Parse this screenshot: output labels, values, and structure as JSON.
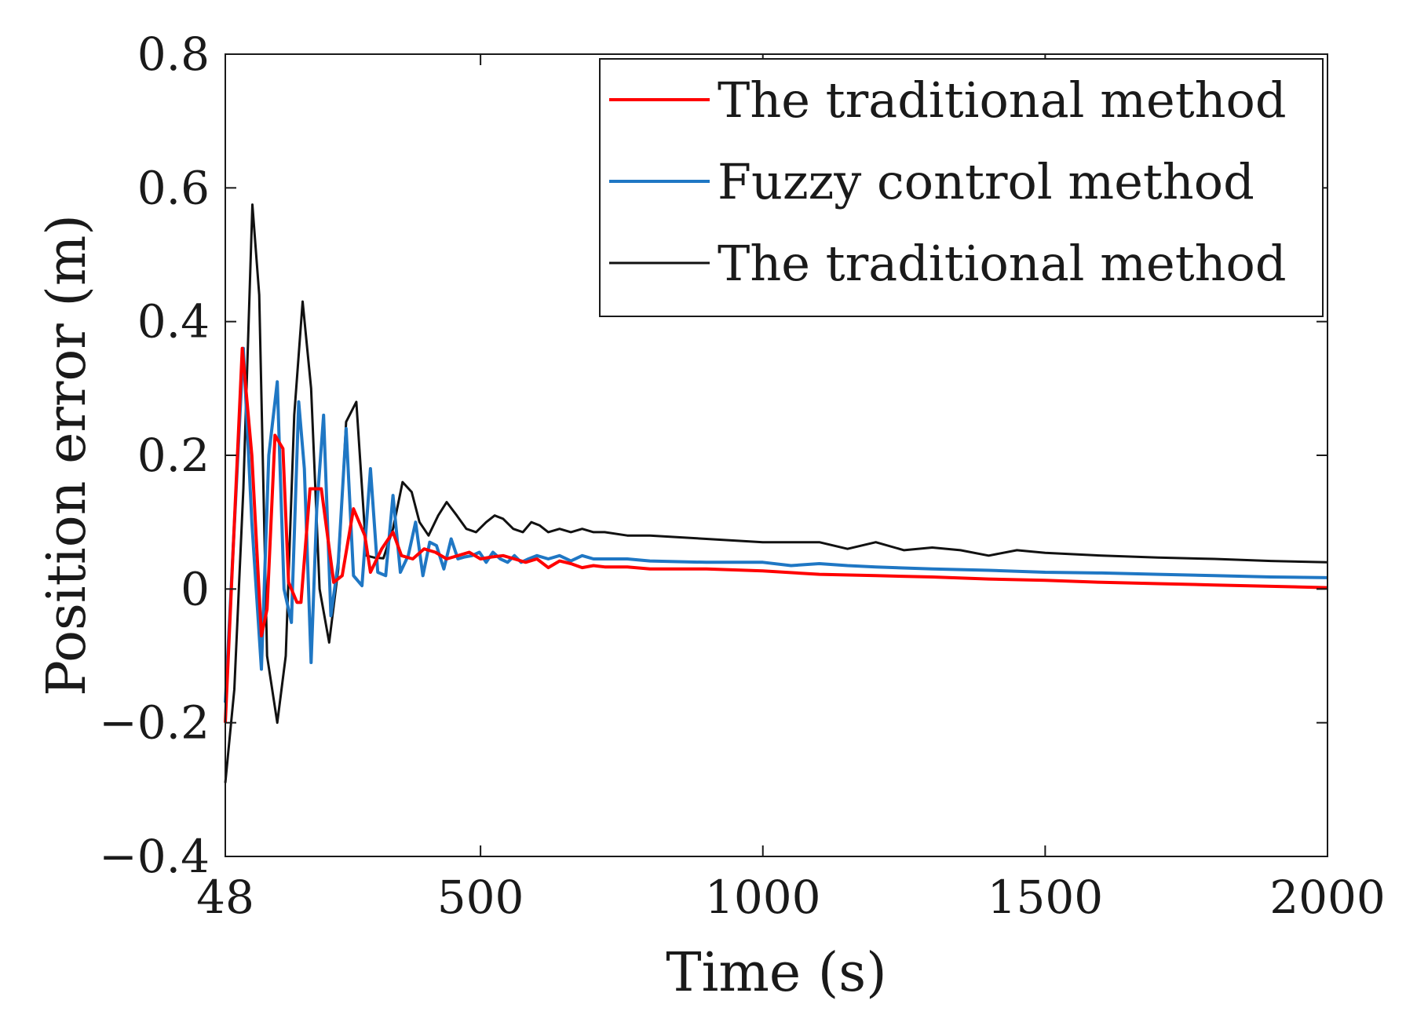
{
  "chart_data": {
    "type": "line",
    "xlabel": "Time (s)",
    "ylabel": "Position error (m)",
    "xlim": [
      48,
      2000
    ],
    "ylim": [
      -0.4,
      0.8
    ],
    "xticks": [
      48,
      500,
      1000,
      1500,
      2000
    ],
    "xtick_labels": [
      "48",
      "500",
      "1000",
      "1500",
      "2000"
    ],
    "yticks": [
      -0.4,
      -0.2,
      0,
      0.2,
      0.4,
      0.6,
      0.8
    ],
    "ytick_labels": [
      "−0.4",
      "−0.2",
      "0",
      "0.2",
      "0.4",
      "0.6",
      "0.8"
    ],
    "grid": false,
    "legend_position": "top-right",
    "series": [
      {
        "name": "The traditional method",
        "color": "#ff0000",
        "x": [
          48,
          78,
          95,
          112,
          122,
          136,
          150,
          160,
          175,
          182,
          198,
          218,
          240,
          255,
          275,
          295,
          305,
          325,
          345,
          360,
          380,
          400,
          420,
          440,
          460,
          480,
          500,
          520,
          540,
          560,
          580,
          600,
          620,
          640,
          660,
          680,
          700,
          720,
          760,
          800,
          900,
          1000,
          1100,
          1200,
          1300,
          1400,
          1500,
          1600,
          1700,
          1800,
          1900,
          2000
        ],
        "values": [
          -0.2,
          0.36,
          0.2,
          -0.07,
          -0.03,
          0.23,
          0.21,
          0.01,
          -0.02,
          -0.02,
          0.15,
          0.15,
          0.01,
          0.02,
          0.12,
          0.08,
          0.025,
          0.06,
          0.085,
          0.05,
          0.045,
          0.06,
          0.055,
          0.045,
          0.05,
          0.055,
          0.045,
          0.048,
          0.05,
          0.045,
          0.04,
          0.045,
          0.032,
          0.042,
          0.038,
          0.032,
          0.035,
          0.033,
          0.033,
          0.03,
          0.03,
          0.027,
          0.022,
          0.02,
          0.018,
          0.015,
          0.013,
          0.01,
          0.008,
          0.006,
          0.004,
          0.002
        ]
      },
      {
        "name": "Fuzzy control method",
        "color": "#1f77c4",
        "x": [
          48,
          80,
          95,
          112,
          125,
          140,
          152,
          165,
          178,
          188,
          200,
          210,
          222,
          235,
          248,
          262,
          275,
          290,
          305,
          318,
          332,
          345,
          358,
          372,
          385,
          398,
          410,
          422,
          435,
          448,
          460,
          472,
          485,
          498,
          510,
          522,
          535,
          548,
          560,
          572,
          585,
          600,
          620,
          640,
          660,
          680,
          700,
          720,
          760,
          800,
          900,
          1000,
          1050,
          1100,
          1150,
          1200,
          1300,
          1400,
          1500,
          1600,
          1700,
          1800,
          1900,
          2000
        ],
        "values": [
          -0.17,
          0.36,
          0.1,
          -0.12,
          0.2,
          0.31,
          0.0,
          -0.05,
          0.28,
          0.18,
          -0.11,
          0.12,
          0.26,
          -0.04,
          0.04,
          0.24,
          0.02,
          0.005,
          0.18,
          0.025,
          0.02,
          0.14,
          0.025,
          0.05,
          0.1,
          0.02,
          0.07,
          0.065,
          0.03,
          0.075,
          0.045,
          0.048,
          0.05,
          0.055,
          0.04,
          0.055,
          0.045,
          0.04,
          0.05,
          0.04,
          0.045,
          0.05,
          0.045,
          0.05,
          0.042,
          0.05,
          0.045,
          0.045,
          0.045,
          0.042,
          0.04,
          0.04,
          0.035,
          0.038,
          0.035,
          0.033,
          0.03,
          0.028,
          0.025,
          0.024,
          0.022,
          0.02,
          0.018,
          0.017
        ]
      },
      {
        "name": "The traditional method",
        "color": "#111111",
        "x": [
          48,
          64,
          80,
          96,
          108,
          122,
          140,
          155,
          170,
          185,
          200,
          215,
          232,
          248,
          262,
          280,
          298,
          312,
          328,
          345,
          362,
          378,
          392,
          408,
          425,
          440,
          458,
          475,
          492,
          510,
          525,
          540,
          558,
          575,
          590,
          605,
          620,
          640,
          660,
          680,
          700,
          720,
          760,
          800,
          900,
          1000,
          1100,
          1150,
          1200,
          1250,
          1300,
          1350,
          1400,
          1450,
          1500,
          1550,
          1600,
          1700,
          1800,
          1900,
          2000
        ],
        "values": [
          -0.29,
          -0.15,
          0.15,
          0.575,
          0.44,
          -0.1,
          -0.2,
          -0.1,
          0.26,
          0.43,
          0.3,
          0.0,
          -0.08,
          0.03,
          0.25,
          0.28,
          0.05,
          0.047,
          0.046,
          0.09,
          0.16,
          0.145,
          0.1,
          0.08,
          0.11,
          0.13,
          0.11,
          0.09,
          0.085,
          0.1,
          0.11,
          0.105,
          0.09,
          0.085,
          0.1,
          0.095,
          0.085,
          0.09,
          0.085,
          0.09,
          0.085,
          0.085,
          0.08,
          0.08,
          0.075,
          0.07,
          0.07,
          0.06,
          0.07,
          0.058,
          0.062,
          0.058,
          0.05,
          0.058,
          0.054,
          0.052,
          0.05,
          0.047,
          0.045,
          0.042,
          0.04
        ]
      }
    ]
  }
}
